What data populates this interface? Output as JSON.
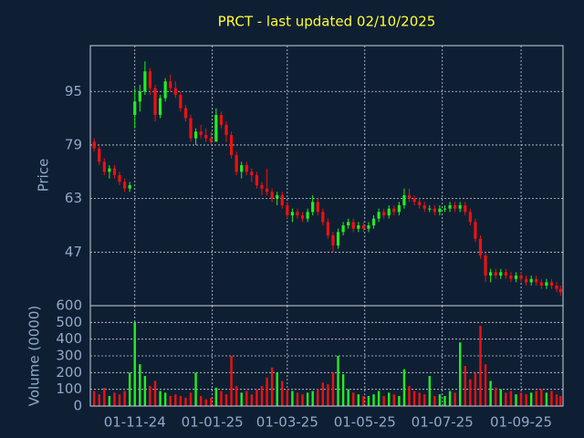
{
  "chart_data": [
    {
      "type": "candlestick",
      "title": "PRCT - last updated 02/10/2025",
      "ylabel": "Price",
      "up_color": "#22ee22",
      "down_color": "#ee1111",
      "grid": true,
      "x": [
        "2024-09-30",
        "2024-10-04",
        "2024-10-08",
        "2024-10-12",
        "2024-10-16",
        "2024-10-20",
        "2024-10-24",
        "2024-10-28",
        "2024-11-01",
        "2024-11-05",
        "2024-11-09",
        "2024-11-13",
        "2024-11-17",
        "2024-11-21",
        "2024-11-25",
        "2024-11-29",
        "2024-12-03",
        "2024-12-07",
        "2024-12-11",
        "2024-12-15",
        "2024-12-19",
        "2024-12-23",
        "2024-12-27",
        "2024-12-31",
        "2025-01-04",
        "2025-01-08",
        "2025-01-12",
        "2025-01-16",
        "2025-01-20",
        "2025-01-24",
        "2025-01-28",
        "2025-02-01",
        "2025-02-05",
        "2025-02-09",
        "2025-02-13",
        "2025-02-17",
        "2025-02-21",
        "2025-02-25",
        "2025-03-01",
        "2025-03-05",
        "2025-03-09",
        "2025-03-13",
        "2025-03-17",
        "2025-03-21",
        "2025-03-25",
        "2025-03-29",
        "2025-04-02",
        "2025-04-06",
        "2025-04-10",
        "2025-04-14",
        "2025-04-18",
        "2025-04-22",
        "2025-04-26",
        "2025-04-30",
        "2025-05-04",
        "2025-05-08",
        "2025-05-12",
        "2025-05-16",
        "2025-05-20",
        "2025-05-24",
        "2025-05-28",
        "2025-06-01",
        "2025-06-05",
        "2025-06-09",
        "2025-06-13",
        "2025-06-17",
        "2025-06-21",
        "2025-06-25",
        "2025-06-29",
        "2025-07-03",
        "2025-07-07",
        "2025-07-11",
        "2025-07-15",
        "2025-07-19",
        "2025-07-23",
        "2025-07-27",
        "2025-07-31",
        "2025-08-04",
        "2025-08-08",
        "2025-08-12",
        "2025-08-16",
        "2025-08-20",
        "2025-08-24",
        "2025-08-28",
        "2025-09-01",
        "2025-09-05",
        "2025-09-09",
        "2025-09-13",
        "2025-09-17",
        "2025-09-21",
        "2025-09-25",
        "2025-09-29",
        "2025-10-02"
      ],
      "open": [
        80,
        78,
        74,
        71,
        72,
        70,
        68,
        66,
        88,
        92,
        95,
        101,
        96,
        88,
        93,
        98,
        96,
        94,
        90,
        87,
        81,
        83,
        82,
        81,
        80,
        88,
        85,
        82,
        76,
        71,
        73,
        71,
        70,
        67,
        66,
        65,
        63,
        64,
        61,
        58,
        59,
        58,
        57,
        59,
        62,
        59,
        56,
        52,
        49,
        53,
        55,
        56,
        54,
        55,
        54,
        55,
        57,
        59,
        58,
        60,
        59,
        61,
        64,
        63,
        62,
        61,
        60,
        60,
        59,
        60,
        60,
        61,
        60,
        61,
        59,
        56,
        51,
        46,
        40,
        41,
        40,
        41,
        40,
        39,
        40,
        39,
        38,
        39,
        38,
        37,
        38,
        37,
        36
      ],
      "high": [
        81,
        79,
        75,
        73,
        73,
        71,
        69,
        68,
        96,
        97,
        104,
        102,
        97,
        94,
        99,
        100,
        98,
        95,
        91,
        88,
        84,
        85,
        84,
        83,
        90,
        89,
        86,
        83,
        77,
        74,
        74,
        72,
        71,
        68,
        72,
        66,
        65,
        65,
        62,
        60,
        60,
        59,
        60,
        64,
        63,
        60,
        57,
        53,
        54,
        56,
        57,
        57,
        56,
        56,
        56,
        58,
        60,
        60,
        61,
        61,
        62,
        66,
        66,
        64,
        63,
        62,
        61,
        61,
        61,
        61,
        62,
        62,
        62,
        62,
        60,
        57,
        52,
        47,
        42,
        42,
        42,
        42,
        41,
        41,
        41,
        40,
        40,
        40,
        39,
        39,
        39,
        38,
        37
      ],
      "low": [
        77,
        73,
        70,
        69,
        69,
        67,
        65,
        65,
        84,
        89,
        94,
        94,
        86,
        87,
        92,
        95,
        93,
        89,
        86,
        80,
        79,
        81,
        80,
        79,
        80,
        84,
        80,
        75,
        70,
        69,
        70,
        68,
        66,
        64,
        64,
        62,
        61,
        60,
        57,
        56,
        57,
        56,
        56,
        58,
        58,
        55,
        51,
        47,
        48,
        52,
        54,
        53,
        53,
        53,
        53,
        54,
        56,
        57,
        57,
        58,
        58,
        60,
        62,
        61,
        60,
        59,
        59,
        58,
        58,
        59,
        59,
        59,
        59,
        58,
        55,
        50,
        45,
        38,
        38,
        39,
        39,
        39,
        38,
        38,
        38,
        37,
        37,
        37,
        36,
        36,
        36,
        35,
        34
      ],
      "close": [
        78,
        74,
        71,
        72,
        70,
        68,
        66,
        67,
        92,
        95,
        101,
        96,
        88,
        93,
        98,
        96,
        94,
        90,
        87,
        81,
        83,
        82,
        81,
        80,
        88,
        85,
        82,
        76,
        71,
        73,
        71,
        70,
        67,
        66,
        65,
        63,
        64,
        61,
        58,
        59,
        58,
        57,
        59,
        62,
        59,
        56,
        52,
        49,
        53,
        55,
        56,
        54,
        55,
        54,
        55,
        57,
        59,
        58,
        60,
        59,
        61,
        64,
        63,
        62,
        61,
        60,
        60,
        59,
        60,
        60,
        61,
        60,
        61,
        59,
        56,
        51,
        46,
        40,
        41,
        40,
        41,
        40,
        39,
        40,
        39,
        38,
        39,
        38,
        37,
        38,
        37,
        36,
        35
      ],
      "xlim": [
        "2024-09-27",
        "2025-10-04"
      ],
      "xticks": [
        {
          "value": "2024-11-01",
          "label": "01-11-24"
        },
        {
          "value": "2025-01-01",
          "label": "01-01-25"
        },
        {
          "value": "2025-03-01",
          "label": "01-03-25"
        },
        {
          "value": "2025-05-01",
          "label": "01-05-25"
        },
        {
          "value": "2025-07-01",
          "label": "01-07-25"
        },
        {
          "value": "2025-09-01",
          "label": "01-09-25"
        }
      ],
      "ylim": [
        31,
        108.7
      ],
      "yticks": [
        47,
        63,
        79,
        95
      ]
    },
    {
      "type": "bar",
      "ylabel": "Volume (0000)",
      "values": [
        90,
        70,
        110,
        60,
        80,
        70,
        90,
        200,
        500,
        250,
        180,
        120,
        150,
        90,
        80,
        60,
        70,
        60,
        50,
        80,
        200,
        60,
        40,
        50,
        110,
        90,
        70,
        300,
        120,
        80,
        90,
        70,
        100,
        120,
        170,
        230,
        200,
        150,
        100,
        90,
        80,
        70,
        80,
        90,
        100,
        140,
        130,
        200,
        300,
        190,
        100,
        80,
        70,
        60,
        60,
        70,
        90,
        60,
        80,
        70,
        60,
        220,
        120,
        90,
        80,
        70,
        180,
        60,
        70,
        60,
        90,
        80,
        380,
        240,
        160,
        200,
        480,
        250,
        150,
        110,
        100,
        80,
        90,
        70,
        80,
        70,
        80,
        90,
        100,
        80,
        90,
        70,
        60
      ],
      "ylim": [
        0,
        600
      ],
      "yticks": [
        0,
        100,
        200,
        300,
        400,
        500,
        600
      ]
    }
  ]
}
